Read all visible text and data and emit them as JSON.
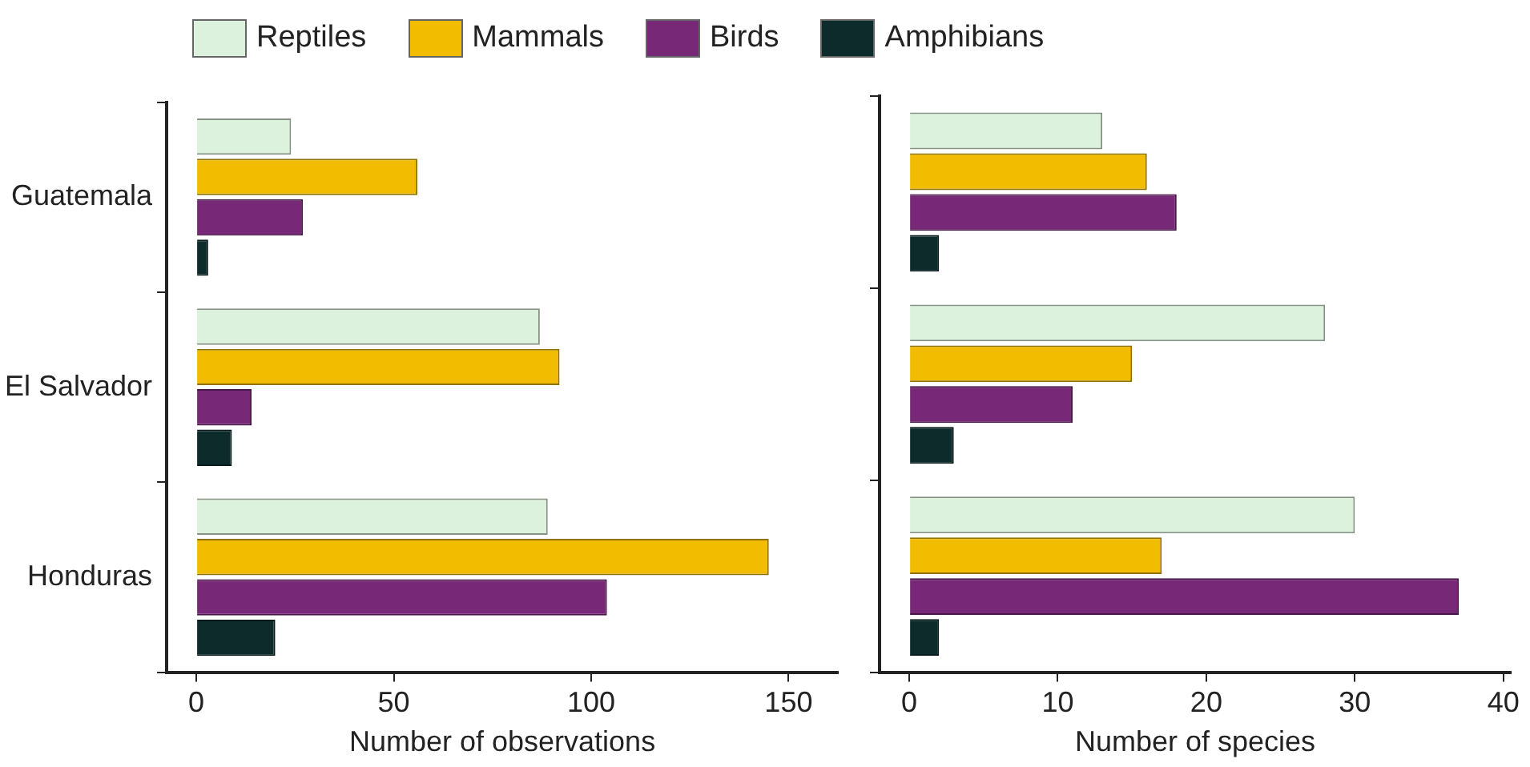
{
  "chart_data": [
    {
      "type": "bar",
      "orientation": "horizontal",
      "categories": [
        "Guatemala",
        "El Salvador",
        "Honduras"
      ],
      "xlabel": "Number of observations",
      "xlim": [
        -7.5,
        162.5
      ],
      "xticks": [
        0,
        50,
        100,
        150
      ],
      "grid": false,
      "legend": "top",
      "series": [
        {
          "name": "Reptiles",
          "color": "#dcf2dc",
          "values": [
            24,
            87,
            89
          ]
        },
        {
          "name": "Mammals",
          "color": "#f2bd00",
          "values": [
            56,
            92,
            145
          ]
        },
        {
          "name": "Birds",
          "color": "#772877",
          "values": [
            27,
            14,
            104
          ]
        },
        {
          "name": "Amphibians",
          "color": "#0d2b2b",
          "values": [
            3,
            9,
            20
          ]
        }
      ]
    },
    {
      "type": "bar",
      "orientation": "horizontal",
      "categories": [
        null,
        null,
        null
      ],
      "xlabel": "Number of species",
      "xlim": [
        -2,
        40.5
      ],
      "xticks": [
        0,
        10,
        20,
        30,
        40
      ],
      "grid": false,
      "tick_labels": "x",
      "series": [
        {
          "color": "#dcf2dc",
          "values": [
            13,
            28,
            30
          ]
        },
        {
          "color": "#f2bd00",
          "values": [
            16,
            15,
            17
          ]
        },
        {
          "color": "#772877",
          "values": [
            18,
            11,
            37
          ]
        },
        {
          "color": "#0d2b2b",
          "values": [
            2,
            3,
            2
          ]
        }
      ]
    }
  ]
}
